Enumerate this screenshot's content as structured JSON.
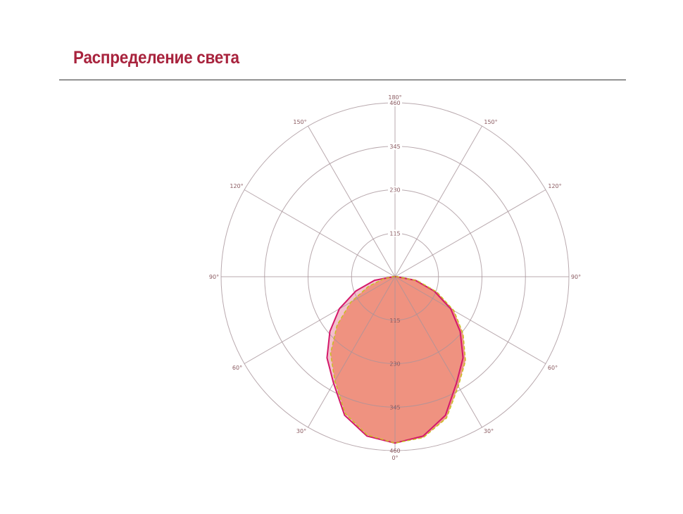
{
  "title": "Распределение света",
  "chart_data": {
    "type": "polar",
    "radial_ticks": [
      "115",
      "230",
      "345",
      "460"
    ],
    "r_max": 460,
    "angle_labels": {
      "top": "180°",
      "bottom": "0°",
      "upper": "150°",
      "upper_mid": "120°",
      "horizontal": "90°",
      "lower_mid": "60°",
      "lower": "30°"
    },
    "angles_deg": [
      -90,
      -80,
      -70,
      -60,
      -50,
      -40,
      -30,
      -20,
      -10,
      0,
      10,
      20,
      30,
      40,
      50,
      60,
      70,
      80,
      90
    ],
    "series": [
      {
        "color": "#d4186a",
        "fill": "#f2b8c6",
        "style": "solid",
        "values": [
          5,
          55,
          110,
          170,
          225,
          280,
          325,
          390,
          428,
          440,
          428,
          390,
          325,
          280,
          225,
          170,
          110,
          55,
          5
        ]
      },
      {
        "color": "#c8c020",
        "fill": "#ee8d78",
        "style": "dashed",
        "values": [
          5,
          30,
          75,
          135,
          200,
          265,
          318,
          385,
          425,
          440,
          432,
          398,
          335,
          290,
          235,
          180,
          118,
          60,
          5
        ]
      }
    ],
    "grid": true
  }
}
